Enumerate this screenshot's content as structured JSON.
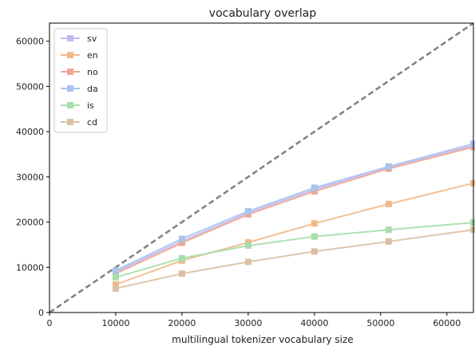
{
  "chart_data": {
    "type": "line",
    "title": "vocabulary overlap",
    "xlabel": "multilingual tokenizer vocabulary size",
    "ylabel": "",
    "xlim": [
      0,
      64000
    ],
    "ylim": [
      0,
      64000
    ],
    "xticks": [
      0,
      10000,
      20000,
      30000,
      40000,
      50000,
      60000
    ],
    "yticks": [
      0,
      10000,
      20000,
      30000,
      40000,
      50000,
      60000
    ],
    "grid": false,
    "legend_position": "top-left",
    "reference_line": {
      "style": "dashed",
      "color": "#808080",
      "from": [
        0,
        0
      ],
      "to": [
        64000,
        64000
      ]
    },
    "x": [
      10000,
      20000,
      30000,
      40000,
      51200,
      64000
    ],
    "series": [
      {
        "name": "sv",
        "color": "#c5b8f0",
        "values": [
          9000,
          15800,
          22000,
          27200,
          32100,
          36900
        ]
      },
      {
        "name": "en",
        "color": "#f0b98a",
        "values": [
          6200,
          11500,
          15500,
          19700,
          24000,
          28600
        ]
      },
      {
        "name": "no",
        "color": "#eea797",
        "values": [
          8600,
          15400,
          21700,
          26800,
          31800,
          36600
        ]
      },
      {
        "name": "da",
        "color": "#a9c4ee",
        "values": [
          9300,
          16300,
          22400,
          27600,
          32300,
          37300
        ]
      },
      {
        "name": "is",
        "color": "#a7deaa",
        "values": [
          7800,
          12000,
          14800,
          16800,
          18300,
          19900
        ]
      },
      {
        "name": "cd",
        "color": "#dcc0a3",
        "values": [
          5300,
          8600,
          11200,
          13500,
          15700,
          18300
        ]
      }
    ]
  }
}
